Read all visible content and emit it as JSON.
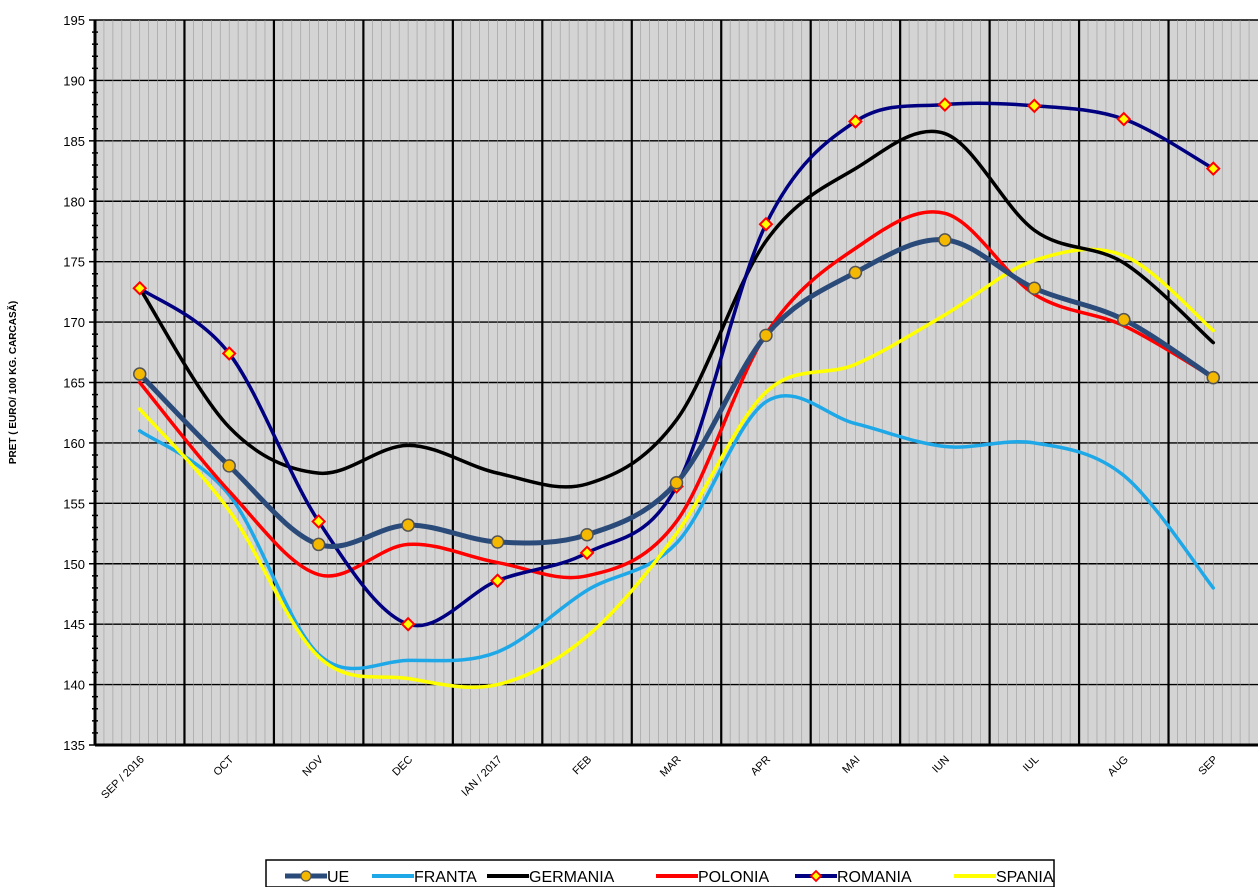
{
  "chart_data": {
    "type": "line",
    "title": "",
    "xlabel": "",
    "ylabel": "PRET ( EURO/ 100 KG. CARCASĂ)",
    "ylim": [
      135,
      195
    ],
    "y_major_step": 5,
    "grid": true,
    "legend_position": "bottom",
    "categories": [
      "SEP / 2016",
      "OCT",
      "NOV",
      "DEC",
      "IAN / 2017",
      "FEB",
      "MAR",
      "APR",
      "MAI",
      "IUN",
      "IUL",
      "AUG",
      "SEP"
    ],
    "series": [
      {
        "name": "UE",
        "color": "#2a4a7a",
        "marker": "circle",
        "values": [
          165.7,
          158.1,
          151.6,
          153.2,
          151.8,
          152.4,
          156.7,
          168.9,
          174.1,
          176.8,
          172.8,
          170.2,
          165.4
        ]
      },
      {
        "name": "FRANTA",
        "color": "#1ea8e8",
        "marker": "none",
        "values": [
          161.0,
          155.7,
          142.5,
          142.0,
          142.7,
          147.8,
          151.7,
          163.4,
          161.6,
          159.7,
          160.0,
          157.3,
          148.0
        ]
      },
      {
        "name": "GERMANIA",
        "color": "#000000",
        "marker": "none",
        "values": [
          172.8,
          161.3,
          157.5,
          159.8,
          157.5,
          156.6,
          161.9,
          176.7,
          182.7,
          185.6,
          177.6,
          174.9,
          168.3
        ]
      },
      {
        "name": "POLONIA",
        "color": "#ff0000",
        "marker": "none",
        "values": [
          165.0,
          156.0,
          149.1,
          151.6,
          150.1,
          149.0,
          153.5,
          169.0,
          176.1,
          179.0,
          172.3,
          169.7,
          165.4
        ]
      },
      {
        "name": "ROMANIA",
        "color": "#000080",
        "marker": "diamond",
        "values": [
          172.8,
          167.4,
          153.5,
          145.0,
          148.6,
          150.9,
          156.4,
          178.1,
          186.6,
          188.0,
          187.9,
          186.8,
          182.7
        ]
      },
      {
        "name": "SPANIA",
        "color": "#ffff00",
        "marker": "none",
        "values": [
          162.8,
          154.4,
          142.3,
          140.5,
          140.0,
          144.0,
          152.5,
          164.2,
          166.5,
          170.6,
          175.1,
          175.5,
          169.3
        ]
      }
    ]
  }
}
